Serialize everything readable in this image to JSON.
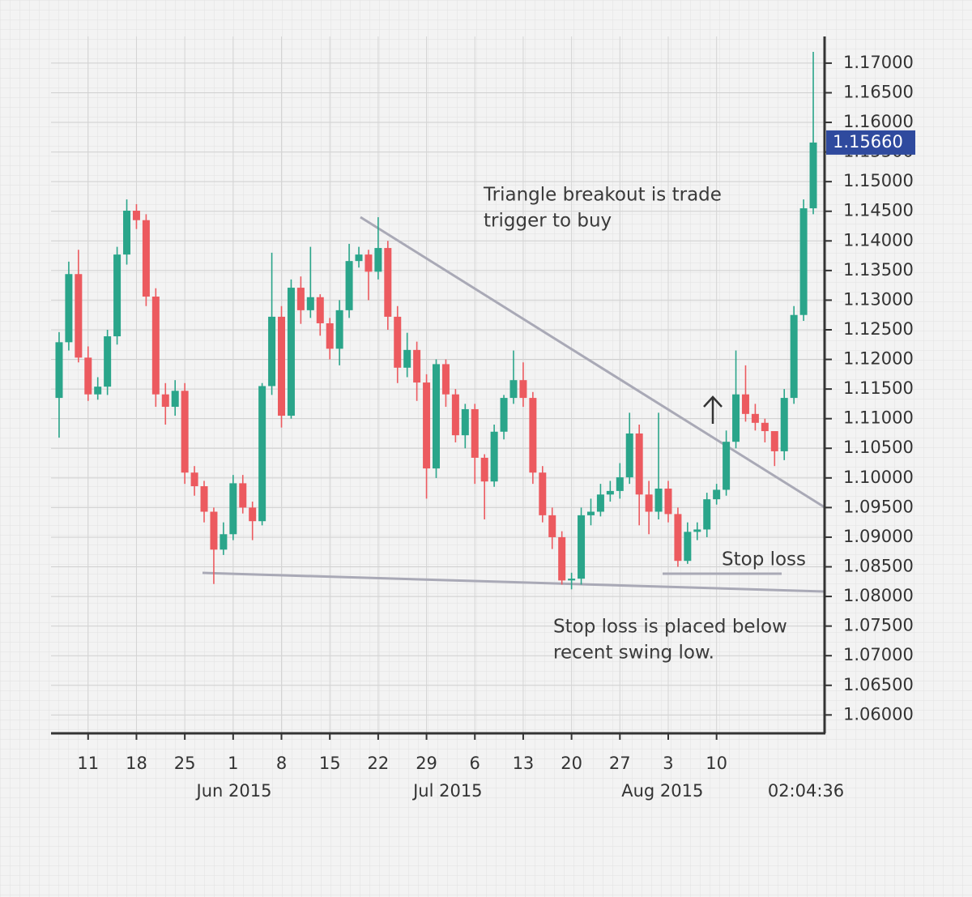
{
  "chart_data": {
    "type": "candlestick",
    "categories": [
      null,
      null,
      null,
      "11",
      null,
      null,
      null,
      null,
      "18",
      null,
      null,
      null,
      null,
      "25",
      null,
      null,
      null,
      null,
      "1",
      null,
      null,
      null,
      null,
      "8",
      null,
      null,
      null,
      null,
      "15",
      null,
      null,
      null,
      null,
      "22",
      null,
      null,
      null,
      null,
      "29",
      null,
      null,
      null,
      null,
      "6",
      null,
      null,
      null,
      null,
      "13",
      null,
      null,
      null,
      null,
      "20",
      null,
      null,
      null,
      null,
      "27",
      null,
      null,
      null,
      null,
      "3",
      null,
      null,
      null,
      null,
      "10",
      null,
      null,
      null,
      null,
      null,
      null,
      null,
      null,
      null,
      null
    ],
    "open": [
      1.1135,
      1.1229,
      1.1344,
      1.1203,
      1.1141,
      1.1154,
      1.1239,
      1.1377,
      1.1451,
      1.1435,
      1.1306,
      1.1141,
      1.112,
      1.1147,
      1.1009,
      1.0986,
      1.0943,
      1.0879,
      1.0905,
      1.0991,
      1.095,
      1.0927,
      1.1155,
      1.1272,
      1.1105,
      1.1321,
      1.1283,
      1.1305,
      1.1261,
      1.1218,
      1.1283,
      1.1366,
      1.1377,
      1.1348,
      1.1388,
      1.1272,
      1.1186,
      1.1216,
      1.1161,
      1.1016,
      1.1192,
      1.1141,
      1.1072,
      1.1116,
      1.1034,
      1.0994,
      1.1078,
      1.1135,
      1.1165,
      1.1135,
      1.1009,
      1.0937,
      1.09,
      1.0827,
      1.083,
      1.0937,
      1.0943,
      1.0972,
      1.0978,
      1.1001,
      1.1075,
      1.0972,
      1.0943,
      1.0982,
      1.0939,
      1.086,
      1.0909,
      1.0913,
      1.0964,
      1.098,
      1.1061,
      1.1141,
      1.1108,
      1.1093,
      1.1079,
      1.1045,
      1.1135,
      1.1275,
      1.1455
    ],
    "high": [
      1.1246,
      1.1365,
      1.1385,
      1.1222,
      1.117,
      1.125,
      1.139,
      1.147,
      1.1462,
      1.1445,
      1.132,
      1.116,
      1.1165,
      1.116,
      1.102,
      1.0995,
      1.095,
      1.0925,
      1.1005,
      1.1005,
      1.096,
      1.116,
      1.138,
      1.129,
      1.1335,
      1.134,
      1.139,
      1.131,
      1.127,
      1.13,
      1.1395,
      1.139,
      1.1385,
      1.144,
      1.14,
      1.129,
      1.1245,
      1.123,
      1.1175,
      1.12,
      1.12,
      1.115,
      1.1125,
      1.1125,
      1.104,
      1.109,
      1.114,
      1.1215,
      1.1195,
      1.1145,
      1.102,
      1.095,
      1.091,
      1.084,
      1.095,
      1.0965,
      1.099,
      1.0995,
      1.1025,
      1.111,
      1.109,
      1.0995,
      1.111,
      1.0995,
      1.095,
      1.0925,
      1.0925,
      1.0975,
      1.099,
      1.108,
      1.1215,
      1.119,
      1.1125,
      1.11,
      1.1075,
      1.115,
      1.129,
      1.147,
      1.1719
    ],
    "low": [
      1.1068,
      1.1215,
      1.1195,
      1.113,
      1.1132,
      1.114,
      1.1225,
      1.136,
      1.142,
      1.129,
      1.112,
      1.109,
      1.1105,
      1.099,
      1.097,
      1.0925,
      1.0821,
      1.087,
      1.0895,
      1.094,
      1.0895,
      1.092,
      1.114,
      1.1085,
      1.11,
      1.126,
      1.127,
      1.124,
      1.12,
      1.119,
      1.127,
      1.1355,
      1.13,
      1.1335,
      1.125,
      1.116,
      1.117,
      1.113,
      1.0965,
      1.1,
      1.112,
      1.106,
      1.105,
      1.099,
      1.093,
      1.0985,
      1.1065,
      1.1125,
      1.112,
      1.099,
      1.0925,
      1.088,
      1.082,
      1.0812,
      1.082,
      1.092,
      1.0935,
      1.096,
      1.0965,
      1.099,
      1.092,
      1.0905,
      1.093,
      1.0925,
      1.085,
      1.0855,
      1.0895,
      1.09,
      1.0955,
      1.097,
      1.105,
      1.1095,
      1.108,
      1.106,
      1.102,
      1.103,
      1.1125,
      1.1265,
      1.1445
    ],
    "close": [
      1.1229,
      1.1344,
      1.1203,
      1.1141,
      1.1154,
      1.1239,
      1.1377,
      1.1451,
      1.1435,
      1.1306,
      1.1141,
      1.112,
      1.1147,
      1.1009,
      1.0986,
      1.0943,
      1.0879,
      1.0905,
      1.0991,
      1.095,
      1.0927,
      1.1155,
      1.1272,
      1.1105,
      1.1321,
      1.1283,
      1.1305,
      1.1261,
      1.1218,
      1.1283,
      1.1366,
      1.1377,
      1.1348,
      1.1388,
      1.1272,
      1.1186,
      1.1216,
      1.1161,
      1.1016,
      1.1192,
      1.1141,
      1.1072,
      1.1116,
      1.1034,
      1.0994,
      1.1078,
      1.1135,
      1.1165,
      1.1135,
      1.1009,
      1.0937,
      1.09,
      1.0827,
      1.083,
      1.0937,
      1.0943,
      1.0972,
      1.0978,
      1.1001,
      1.1075,
      1.0972,
      1.0943,
      1.0982,
      1.0939,
      1.086,
      1.0909,
      1.0913,
      1.0964,
      1.098,
      1.1061,
      1.1141,
      1.1108,
      1.1093,
      1.1079,
      1.1045,
      1.1135,
      1.1275,
      1.1455,
      1.1566
    ],
    "up_color": "#2aa58a",
    "down_color": "#ec5a5f",
    "ylim": [
      1.0569,
      1.1745
    ],
    "yticks": [
      {
        "value": 1.06,
        "label": "1.06000"
      },
      {
        "value": 1.065,
        "label": "1.06500"
      },
      {
        "value": 1.07,
        "label": "1.07000"
      },
      {
        "value": 1.075,
        "label": "1.07500"
      },
      {
        "value": 1.08,
        "label": "1.08000"
      },
      {
        "value": 1.085,
        "label": "1.08500"
      },
      {
        "value": 1.09,
        "label": "1.09000"
      },
      {
        "value": 1.095,
        "label": "1.09500"
      },
      {
        "value": 1.1,
        "label": "1.10000"
      },
      {
        "value": 1.105,
        "label": "1.10500"
      },
      {
        "value": 1.11,
        "label": "1.11000"
      },
      {
        "value": 1.115,
        "label": "1.11500"
      },
      {
        "value": 1.12,
        "label": "1.12000"
      },
      {
        "value": 1.125,
        "label": "1.12500"
      },
      {
        "value": 1.13,
        "label": "1.13000"
      },
      {
        "value": 1.135,
        "label": "1.13500"
      },
      {
        "value": 1.14,
        "label": "1.14000"
      },
      {
        "value": 1.145,
        "label": "1.14500"
      },
      {
        "value": 1.15,
        "label": "1.15000"
      },
      {
        "value": 1.155,
        "label": "1.15500"
      },
      {
        "value": 1.16,
        "label": "1.16000"
      },
      {
        "value": 1.165,
        "label": "1.16500"
      },
      {
        "value": 1.17,
        "label": "1.17000"
      }
    ],
    "grid": true,
    "month_labels": [
      "Jun 2015",
      "Jul 2015",
      "Aug 2015"
    ],
    "time_label": "02:04:36",
    "last_price": 1.1566,
    "last_price_label": "1.15660",
    "last_price_color": "#2f4a9e",
    "annotations": [
      {
        "lines": [
          "Triangle breakout is trade",
          "trigger to buy"
        ]
      },
      {
        "lines": [
          "Stop loss"
        ]
      },
      {
        "lines": [
          "Stop loss is placed below",
          "recent swing low."
        ]
      }
    ]
  }
}
